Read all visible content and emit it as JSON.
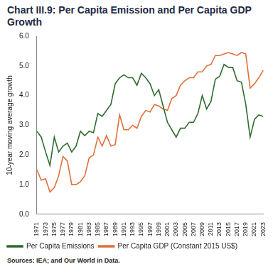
{
  "chart_data": {
    "type": "line",
    "title": "Chart III.9: Per Capita Emission and Per Capita GDP Growth",
    "y_label": "10-year moving average growth",
    "source": "Sources: IEA; and Our World in Data.",
    "categories": [
      "1971",
      null,
      "1973",
      null,
      "1975",
      null,
      "1977",
      null,
      "1979",
      null,
      "1981",
      null,
      "1983",
      null,
      "1985",
      null,
      "1987",
      null,
      "1989",
      null,
      "1991",
      null,
      "1993",
      null,
      "1995",
      null,
      "1997",
      null,
      "1999",
      null,
      "2001",
      null,
      "2003",
      null,
      "2005",
      null,
      "2007",
      null,
      "2009",
      null,
      "2011",
      null,
      "2013",
      null,
      "2015",
      null,
      "2017",
      null,
      "2019",
      null,
      "2021",
      null,
      "2023"
    ],
    "series": [
      {
        "name": "Per Capita Emissions",
        "color": "#2f6b2f",
        "line_style": "solid",
        "marker": "none",
        "values": [
          2.8,
          2.6,
          2.1,
          1.65,
          2.6,
          2.1,
          2.3,
          2.4,
          2.1,
          2.3,
          2.8,
          2.65,
          2.8,
          2.75,
          3.4,
          3.3,
          3.5,
          3.7,
          4.4,
          4.6,
          4.7,
          4.6,
          4.6,
          4.35,
          4.75,
          4.6,
          4.4,
          4.0,
          4.2,
          3.65,
          3.1,
          2.85,
          2.6,
          2.9,
          2.9,
          3.1,
          3.1,
          3.4,
          4.0,
          3.55,
          3.8,
          4.55,
          4.65,
          5.05,
          4.95,
          4.95,
          4.5,
          4.45,
          3.7,
          2.6,
          3.2,
          3.35,
          3.3
        ]
      },
      {
        "name": "Per Capita GDP (Constant 2015 US$)",
        "color": "#e0703a",
        "line_style": "solid",
        "marker": "none",
        "values": [
          1.5,
          1.15,
          1.2,
          0.75,
          0.9,
          1.3,
          1.95,
          1.8,
          1.0,
          1.0,
          1.1,
          1.3,
          1.9,
          2.0,
          2.6,
          2.3,
          2.65,
          2.3,
          2.35,
          3.35,
          2.85,
          2.85,
          3.0,
          2.9,
          3.3,
          3.5,
          3.45,
          3.7,
          3.65,
          3.55,
          3.5,
          3.9,
          4.0,
          4.35,
          4.5,
          4.6,
          4.6,
          4.8,
          4.8,
          5.0,
          5.05,
          5.35,
          5.35,
          5.4,
          5.45,
          5.4,
          5.35,
          5.45,
          5.4,
          4.25,
          4.4,
          4.6,
          4.85
        ]
      }
    ],
    "ylim": [
      0,
      6
    ],
    "yticks": [
      {
        "value": 0,
        "label": "0.0"
      },
      {
        "value": 1,
        "label": "1.0"
      },
      {
        "value": 2,
        "label": "2.0"
      },
      {
        "value": 3,
        "label": "3.0"
      },
      {
        "value": 4,
        "label": "4.0"
      },
      {
        "value": 5,
        "label": "5.0"
      },
      {
        "value": 6,
        "label": "6.0"
      }
    ],
    "grid": false,
    "legend": "bottom"
  }
}
